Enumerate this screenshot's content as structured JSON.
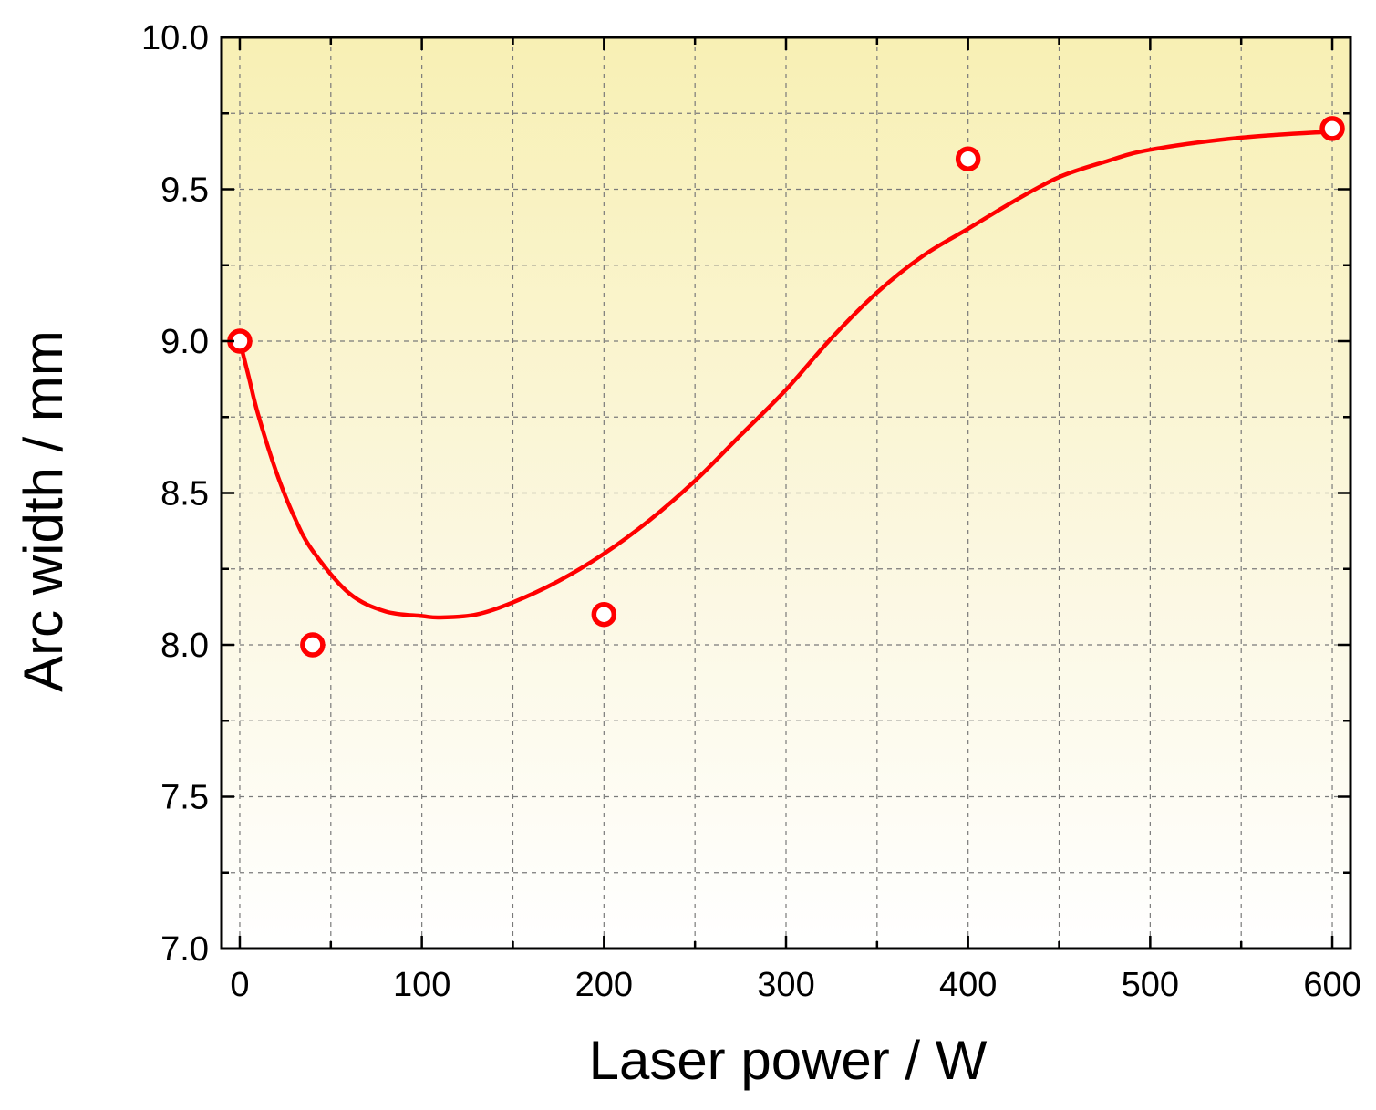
{
  "chart_data": {
    "type": "scatter",
    "title": "",
    "xlabel": "Laser power / W",
    "ylabel": "Arc width / mm",
    "xlim": [
      -10,
      610
    ],
    "ylim": [
      7.0,
      10.0
    ],
    "xticks": [
      0,
      100,
      200,
      300,
      400,
      500,
      600
    ],
    "yticks": [
      7.0,
      7.5,
      8.0,
      8.5,
      9.0,
      9.5,
      10.0
    ],
    "xtick_labels": [
      "0",
      "100",
      "200",
      "300",
      "400",
      "500",
      "600"
    ],
    "ytick_labels": [
      "7.0",
      "7.5",
      "8.0",
      "8.5",
      "9.0",
      "9.5",
      "10.0"
    ],
    "grid": true,
    "background": "vertical gradient yellow to white",
    "series": [
      {
        "marker": "open-circle",
        "color": "#ff0000",
        "x": [
          0,
          40,
          200,
          400,
          600
        ],
        "y": [
          9.0,
          8.0,
          8.1,
          9.6,
          9.7
        ]
      }
    ],
    "fit_curve": {
      "color": "#ff0000",
      "style": "smooth",
      "points": [
        [
          0,
          9.0
        ],
        [
          5,
          8.88
        ],
        [
          10,
          8.76
        ],
        [
          20,
          8.57
        ],
        [
          30,
          8.42
        ],
        [
          40,
          8.31
        ],
        [
          60,
          8.17
        ],
        [
          80,
          8.11
        ],
        [
          100,
          8.095
        ],
        [
          110,
          8.09
        ],
        [
          130,
          8.1
        ],
        [
          150,
          8.14
        ],
        [
          175,
          8.21
        ],
        [
          200,
          8.3
        ],
        [
          225,
          8.41
        ],
        [
          250,
          8.54
        ],
        [
          275,
          8.69
        ],
        [
          300,
          8.84
        ],
        [
          325,
          9.01
        ],
        [
          350,
          9.16
        ],
        [
          375,
          9.28
        ],
        [
          400,
          9.37
        ],
        [
          425,
          9.46
        ],
        [
          450,
          9.54
        ],
        [
          475,
          9.59
        ],
        [
          500,
          9.63
        ],
        [
          550,
          9.67
        ],
        [
          600,
          9.69
        ]
      ]
    }
  }
}
